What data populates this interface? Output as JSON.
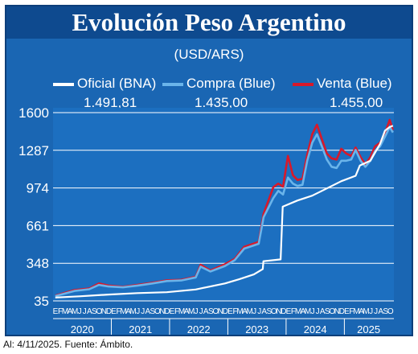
{
  "title": "Evolución Peso Argentino",
  "unit_label": "(USD/ARS)",
  "footer": "Al: 4/11/2025. Fuente: Ámbito.",
  "colors": {
    "oficial": "#ffffff",
    "compra": "#6ab4ea",
    "venta": "#d8192a",
    "background": "#1a66b3",
    "title_bar": "#0e4a8f"
  },
  "chart_data": {
    "type": "line",
    "title": "Evolución Peso Argentino",
    "subtitle": "(USD/ARS)",
    "ylim": [
      35,
      1600
    ],
    "yticks": [
      35,
      348,
      661,
      974,
      1287,
      1600
    ],
    "grid": true,
    "legend_position": "top",
    "month_labels": [
      "E",
      "F",
      "M",
      "A",
      "M",
      "J",
      "J",
      "A",
      "S",
      "O",
      "N",
      "D"
    ],
    "last_year_month_labels": [
      "E",
      "F",
      "M",
      "A",
      "M",
      "J",
      "J",
      "A",
      "S",
      "O"
    ],
    "years": [
      "2020",
      "2021",
      "2022",
      "2023",
      "2024",
      "2025"
    ],
    "series": [
      {
        "name": "Oficial (BNA)",
        "latest_label": "1.491,81",
        "points": [
          [
            "2020-01",
            63
          ],
          [
            "2020-06",
            73
          ],
          [
            "2020-12",
            88
          ],
          [
            "2021-06",
            100
          ],
          [
            "2021-12",
            107
          ],
          [
            "2022-06",
            130
          ],
          [
            "2022-12",
            180
          ],
          [
            "2023-03",
            215
          ],
          [
            "2023-06",
            255
          ],
          [
            "2023-08-10",
            300
          ],
          [
            "2023-08-14",
            365
          ],
          [
            "2023-11-30",
            380
          ],
          [
            "2023-12-13",
            818
          ],
          [
            "2024-03",
            870
          ],
          [
            "2024-06",
            910
          ],
          [
            "2024-09",
            970
          ],
          [
            "2024-12",
            1030
          ],
          [
            "2025-03",
            1075
          ],
          [
            "2025-04-10",
            1160
          ],
          [
            "2025-06",
            1200
          ],
          [
            "2025-08",
            1340
          ],
          [
            "2025-09",
            1450
          ],
          [
            "2025-10",
            1480
          ],
          [
            "2025-11-04",
            1491.81
          ]
        ]
      },
      {
        "name": "Compra (Blue)",
        "latest_label": "1.435,00",
        "points": [
          [
            "2020-01",
            75
          ],
          [
            "2020-05",
            118
          ],
          [
            "2020-08",
            132
          ],
          [
            "2020-10",
            168
          ],
          [
            "2020-12",
            155
          ],
          [
            "2021-03",
            148
          ],
          [
            "2021-06",
            163
          ],
          [
            "2021-09",
            180
          ],
          [
            "2021-12",
            200
          ],
          [
            "2022-03",
            205
          ],
          [
            "2022-06",
            230
          ],
          [
            "2022-07",
            320
          ],
          [
            "2022-09",
            280
          ],
          [
            "2022-12",
            325
          ],
          [
            "2023-02",
            375
          ],
          [
            "2023-04",
            470
          ],
          [
            "2023-07",
            510
          ],
          [
            "2023-08",
            730
          ],
          [
            "2023-10",
            890
          ],
          [
            "2023-11",
            950
          ],
          [
            "2023-12",
            920
          ],
          [
            "2024-01",
            1060
          ],
          [
            "2024-02",
            1010
          ],
          [
            "2024-03",
            990
          ],
          [
            "2024-04",
            1000
          ],
          [
            "2024-05",
            1200
          ],
          [
            "2024-06",
            1350
          ],
          [
            "2024-07",
            1420
          ],
          [
            "2024-08",
            1320
          ],
          [
            "2024-09",
            1210
          ],
          [
            "2024-10",
            1150
          ],
          [
            "2024-11",
            1140
          ],
          [
            "2024-12",
            1200
          ],
          [
            "2025-01",
            1200
          ],
          [
            "2025-02",
            1210
          ],
          [
            "2025-03",
            1290
          ],
          [
            "2025-04",
            1200
          ],
          [
            "2025-05",
            1150
          ],
          [
            "2025-06",
            1200
          ],
          [
            "2025-07",
            1280
          ],
          [
            "2025-08",
            1320
          ],
          [
            "2025-09",
            1400
          ],
          [
            "2025-10",
            1480
          ],
          [
            "2025-11-04",
            1435
          ]
        ]
      },
      {
        "name": "Venta (Blue)",
        "latest_label": "1.455,00",
        "points": [
          [
            "2020-01",
            79
          ],
          [
            "2020-05",
            125
          ],
          [
            "2020-08",
            138
          ],
          [
            "2020-10",
            180
          ],
          [
            "2020-12",
            163
          ],
          [
            "2021-03",
            153
          ],
          [
            "2021-06",
            168
          ],
          [
            "2021-09",
            186
          ],
          [
            "2021-12",
            206
          ],
          [
            "2022-03",
            210
          ],
          [
            "2022-06",
            236
          ],
          [
            "2022-07",
            335
          ],
          [
            "2022-09",
            288
          ],
          [
            "2022-12",
            340
          ],
          [
            "2023-02",
            385
          ],
          [
            "2023-04",
            485
          ],
          [
            "2023-07",
            525
          ],
          [
            "2023-08",
            760
          ],
          [
            "2023-10",
            980
          ],
          [
            "2023-11",
            1010
          ],
          [
            "2023-12",
            985
          ],
          [
            "2024-01",
            1240
          ],
          [
            "2024-02",
            1080
          ],
          [
            "2024-03",
            1040
          ],
          [
            "2024-04",
            1050
          ],
          [
            "2024-05",
            1250
          ],
          [
            "2024-06",
            1420
          ],
          [
            "2024-07",
            1500
          ],
          [
            "2024-08",
            1380
          ],
          [
            "2024-09",
            1260
          ],
          [
            "2024-10",
            1220
          ],
          [
            "2024-11",
            1210
          ],
          [
            "2024-12",
            1300
          ],
          [
            "2025-01",
            1260
          ],
          [
            "2025-02",
            1240
          ],
          [
            "2025-03",
            1310
          ],
          [
            "2025-04",
            1230
          ],
          [
            "2025-05",
            1170
          ],
          [
            "2025-06",
            1230
          ],
          [
            "2025-07",
            1320
          ],
          [
            "2025-08",
            1350
          ],
          [
            "2025-09",
            1430
          ],
          [
            "2025-10",
            1540
          ],
          [
            "2025-11-04",
            1455
          ]
        ]
      }
    ]
  }
}
